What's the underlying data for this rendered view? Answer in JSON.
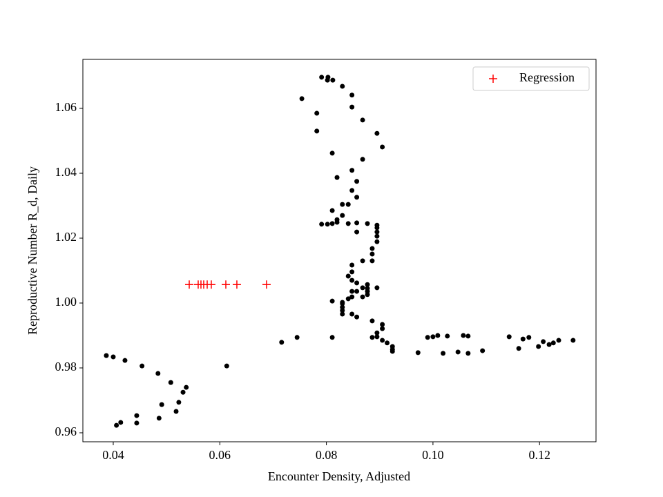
{
  "chart_data": {
    "type": "scatter",
    "xlabel": "Encounter Density, Adjusted",
    "ylabel": "Reproductive Number R_d, Daily",
    "xlim": [
      0.0343,
      0.1306
    ],
    "ylim": [
      0.95723,
      1.07511
    ],
    "xticks": [
      0.04,
      0.06,
      0.08,
      {
        "value": 0.1,
        "label": "0.10"
      },
      0.12
    ],
    "yticks": [
      0.96,
      0.98,
      {
        "value": 1,
        "label": "1.00"
      },
      1.02,
      1.04,
      1.06
    ],
    "legend": "upper right",
    "series": [
      {
        "color": "#000000",
        "marker": "o",
        "x": [
          0.0387,
          0.04,
          0.0422,
          0.0454,
          0.0484,
          0.0508,
          0.0537,
          0.0531,
          0.0523,
          0.0518,
          0.0491,
          0.0486,
          0.0444,
          0.0444,
          0.0414,
          0.0406,
          0.0613,
          0.0716,
          0.0745,
          0.0811,
          0.0791,
          0.0803,
          0.0802,
          0.0812,
          0.083,
          0.0754,
          0.0848,
          0.0782,
          0.0848,
          0.0868,
          0.0782,
          0.0895,
          0.0905,
          0.0811,
          0.0868,
          0.0848,
          0.082,
          0.0857,
          0.0848,
          0.0857,
          0.083,
          0.0841,
          0.0811,
          0.083,
          0.082,
          0.0791,
          0.0802,
          0.0811,
          0.082,
          0.0841,
          0.0857,
          0.0877,
          0.0895,
          0.0895,
          0.0895,
          0.0895,
          0.0857,
          0.0895,
          0.0886,
          0.0886,
          0.0886,
          0.0868,
          0.0848,
          0.0848,
          0.0841,
          0.0848,
          0.0857,
          0.0877,
          0.0868,
          0.0848,
          0.0895,
          0.0857,
          0.0877,
          0.0877,
          0.0877,
          0.0868,
          0.0848,
          0.0841,
          0.083,
          0.0811,
          0.083,
          0.083,
          0.083,
          0.083,
          0.0848,
          0.0857,
          0.0886,
          0.0905,
          0.0905,
          0.0895,
          0.0895,
          0.0886,
          0.0905,
          0.0914,
          0.0924,
          0.0924,
          0.0924,
          0.0972,
          0.099,
          0.1,
          0.1009,
          0.1019,
          0.1027,
          0.1047,
          0.1057,
          0.1066,
          0.1066,
          0.1093,
          0.1143,
          0.1161,
          0.1169,
          0.118,
          0.1198,
          0.1207,
          0.1218,
          0.1226,
          0.1236,
          0.1263
        ],
        "values": [
          0.9838,
          0.9834,
          0.9823,
          0.9806,
          0.9783,
          0.9755,
          0.974,
          0.9725,
          0.9694,
          0.9666,
          0.9687,
          0.9645,
          0.963,
          0.9653,
          0.9632,
          0.9623,
          0.9806,
          0.9879,
          0.9894,
          0.9894,
          1.0696,
          1.0696,
          1.0687,
          1.0687,
          1.0668,
          1.063,
          1.0641,
          1.0585,
          1.0604,
          1.0564,
          1.053,
          1.0523,
          1.0481,
          1.0462,
          1.0443,
          1.0409,
          1.0387,
          1.0375,
          1.0347,
          1.0326,
          1.0304,
          1.0304,
          1.0285,
          1.027,
          1.0257,
          1.0243,
          1.0243,
          1.0245,
          1.0249,
          1.0245,
          1.0247,
          1.0245,
          1.024,
          1.0232,
          1.0219,
          1.0206,
          1.0219,
          1.0189,
          1.0168,
          1.0151,
          1.013,
          1.013,
          1.0117,
          1.0096,
          1.0083,
          1.007,
          1.0062,
          1.0057,
          1.0047,
          1.0036,
          1.0047,
          1.0036,
          1.0045,
          1.0036,
          1.0026,
          1.0019,
          1.0019,
          1.0013,
          1.0002,
          1.0006,
          0.9998,
          0.9987,
          0.9977,
          0.9966,
          0.9966,
          0.9957,
          0.9945,
          0.9934,
          0.9921,
          0.9908,
          0.9896,
          0.9894,
          0.9885,
          0.9877,
          0.9866,
          0.9857,
          0.9851,
          0.9847,
          0.9894,
          0.9896,
          0.99,
          0.9845,
          0.9898,
          0.9849,
          0.99,
          0.9845,
          0.9898,
          0.9853,
          0.9896,
          0.986,
          0.9889,
          0.9894,
          0.9866,
          0.9881,
          0.9872,
          0.9877,
          0.9885,
          0.9885
        ]
      },
      {
        "name": "Regression",
        "color": "#ff0000",
        "marker": "+",
        "x": [
          0.05426,
          0.05594,
          0.05646,
          0.05698,
          0.05763,
          0.0584,
          0.06113,
          0.0632,
          0.06877
        ],
        "values": [
          1.0057,
          1.0057,
          1.0057,
          1.0057,
          1.0057,
          1.0057,
          1.0057,
          1.0057,
          1.0057
        ]
      }
    ]
  }
}
